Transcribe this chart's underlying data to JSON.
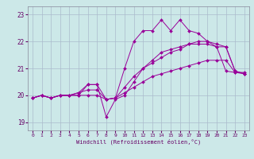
{
  "xlabel": "Windchill (Refroidissement éolien,°C)",
  "bg_color": "#cce8e8",
  "line_color": "#990099",
  "grid_color": "#aabbcc",
  "xlim": [
    -0.5,
    23.5
  ],
  "ylim": [
    18.7,
    23.3
  ],
  "yticks": [
    19,
    20,
    21,
    22,
    23
  ],
  "xticks": [
    0,
    1,
    2,
    3,
    4,
    5,
    6,
    7,
    8,
    9,
    10,
    11,
    12,
    13,
    14,
    15,
    16,
    17,
    18,
    19,
    20,
    21,
    22,
    23
  ],
  "series": [
    [
      19.9,
      20.0,
      19.9,
      20.0,
      20.0,
      20.0,
      20.4,
      20.4,
      19.85,
      19.9,
      21.0,
      22.0,
      22.4,
      22.4,
      22.8,
      22.4,
      22.8,
      22.4,
      22.3,
      22.0,
      21.8,
      20.9,
      20.85,
      20.85
    ],
    [
      19.9,
      20.0,
      19.9,
      20.0,
      20.0,
      20.1,
      20.4,
      20.4,
      19.2,
      19.85,
      20.0,
      20.5,
      21.0,
      21.3,
      21.6,
      21.7,
      21.8,
      21.9,
      21.9,
      21.9,
      21.8,
      21.8,
      20.9,
      20.8
    ],
    [
      19.9,
      20.0,
      19.9,
      20.0,
      20.0,
      20.1,
      20.2,
      20.2,
      19.85,
      19.9,
      20.3,
      20.7,
      21.0,
      21.2,
      21.4,
      21.6,
      21.7,
      21.9,
      22.0,
      22.0,
      21.9,
      21.8,
      20.9,
      20.8
    ],
    [
      19.9,
      20.0,
      19.9,
      20.0,
      20.0,
      20.0,
      20.0,
      20.0,
      19.85,
      19.9,
      20.1,
      20.3,
      20.5,
      20.7,
      20.8,
      20.9,
      21.0,
      21.1,
      21.2,
      21.3,
      21.3,
      21.3,
      20.85,
      20.8
    ]
  ]
}
